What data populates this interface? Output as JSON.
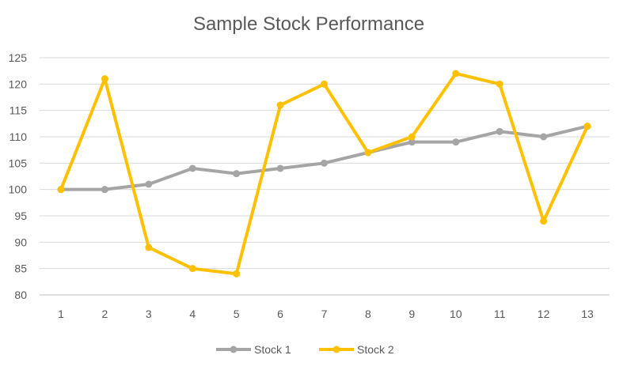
{
  "chart_data": {
    "type": "line",
    "title": "Sample Stock Performance",
    "xlabel": "",
    "ylabel": "",
    "x": [
      1,
      2,
      3,
      4,
      5,
      6,
      7,
      8,
      9,
      10,
      11,
      12,
      13
    ],
    "ylim": [
      80,
      125
    ],
    "yticks": [
      80,
      85,
      90,
      95,
      100,
      105,
      110,
      115,
      120,
      125
    ],
    "grid": true,
    "legend_position": "bottom",
    "series": [
      {
        "name": "Stock 1",
        "color": "#A5A5A5",
        "values": [
          100,
          100,
          101,
          104,
          103,
          104,
          105,
          107,
          109,
          109,
          111,
          110,
          112
        ]
      },
      {
        "name": "Stock 2",
        "color": "#FFC000",
        "values": [
          100,
          121,
          89,
          85,
          84,
          116,
          120,
          107,
          110,
          122,
          120,
          94,
          112
        ]
      }
    ]
  }
}
